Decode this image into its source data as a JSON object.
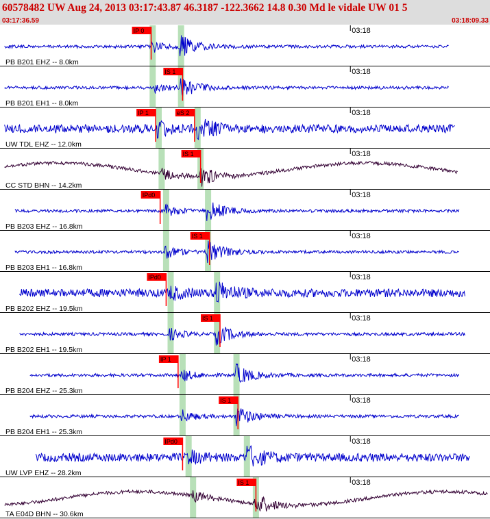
{
  "header": {
    "title": "60578482 UW Aug 24, 2013 03:17:43.87   46.3187 -122.3662 14.8 0.30 Md le vidale UW 01   5",
    "start_time": "03:17:36.59",
    "end_time": "03:18:09.33"
  },
  "colors": {
    "header_bg": "#dddddd",
    "header_text": "#cc0000",
    "trace_short_period": "#0000cc",
    "trace_broadband": "#330033",
    "pick_flag": "#ff0000",
    "theoretical_band": "#b8e0b8",
    "divider": "#000000"
  },
  "chart_data": {
    "type": "line",
    "title": "60578482 UW Aug 24, 2013 03:17:43.87   46.3187 -122.3662 14.8 0.30 Md le vidale UW 01   5",
    "x_unit": "seconds after 03:17:36.59",
    "xlim": [
      0,
      32.74
    ],
    "minute_mark": {
      "label": "03:18",
      "t": 23.41
    },
    "origin_time": "03:17:43.87",
    "grid": false,
    "traces": [
      {
        "label": "PB B201 EHZ -- 8.0km",
        "kind": "sp",
        "data_start": 0.3,
        "data_end": 30.0,
        "p_theory": 10.2,
        "s_theory": 12.1,
        "pick": {
          "label": "IP 0",
          "t": 10.1
        }
      },
      {
        "label": "PB B201 EH1 -- 8.0km",
        "kind": "sp",
        "data_start": 0.3,
        "data_end": 30.0,
        "p_theory": 10.2,
        "s_theory": 12.1,
        "pick": {
          "label": "IS 1",
          "t": 12.2
        }
      },
      {
        "label": "UW TDL EHZ -- 12.0km",
        "kind": "sp",
        "data_start": 0.3,
        "data_end": 30.4,
        "p_theory": 10.6,
        "s_theory": 13.2,
        "pick": {
          "label": "IP 1",
          "t": 10.4
        },
        "pick2": {
          "label": "eS 2",
          "t": 13.0
        }
      },
      {
        "label": "CC STD BHN -- 14.2km",
        "kind": "bb",
        "data_start": 0.3,
        "data_end": 30.6,
        "p_theory": 10.8,
        "s_theory": 13.4,
        "pick": {
          "label": "IS 1",
          "t": 13.4
        }
      },
      {
        "label": "PB B203 EHZ -- 16.8km",
        "kind": "sp",
        "data_start": 1.0,
        "data_end": 30.7,
        "p_theory": 11.1,
        "s_theory": 13.9,
        "pick": {
          "label": "IPd0",
          "t": 10.7
        }
      },
      {
        "label": "PB B203 EH1 -- 16.8km",
        "kind": "sp",
        "data_start": 1.0,
        "data_end": 30.7,
        "p_theory": 11.1,
        "s_theory": 13.9,
        "pick": {
          "label": "IS 1",
          "t": 14.0
        }
      },
      {
        "label": "PB B202 EHZ -- 19.5km",
        "kind": "sp",
        "data_start": 1.3,
        "data_end": 31.1,
        "p_theory": 11.4,
        "s_theory": 14.5,
        "pick": {
          "label": "IPd0",
          "t": 11.1
        }
      },
      {
        "label": "PB B202 EH1 -- 19.5km",
        "kind": "sp",
        "data_start": 1.3,
        "data_end": 31.1,
        "p_theory": 11.4,
        "s_theory": 14.5,
        "pick": {
          "label": "IS 1",
          "t": 14.7
        }
      },
      {
        "label": "PB B204 EHZ -- 25.3km",
        "kind": "sp",
        "data_start": 2.0,
        "data_end": 30.7,
        "p_theory": 12.2,
        "s_theory": 15.8,
        "pick": {
          "label": "IP 1",
          "t": 11.9
        }
      },
      {
        "label": "PB B204 EH1 -- 25.3km",
        "kind": "sp",
        "data_start": 2.0,
        "data_end": 30.7,
        "p_theory": 12.2,
        "s_theory": 15.8,
        "pick": {
          "label": "IS 1",
          "t": 15.9
        }
      },
      {
        "label": "UW LVP EHZ -- 28.2km",
        "kind": "sp",
        "data_start": 2.4,
        "data_end": 31.4,
        "p_theory": 12.6,
        "s_theory": 16.5,
        "pick": {
          "label": "IPd0",
          "t": 12.2
        }
      },
      {
        "label": "TA E04D BHN -- 30.6km",
        "kind": "bb",
        "data_start": 0.3,
        "data_end": 32.6,
        "p_theory": 12.9,
        "s_theory": 17.1,
        "pick": {
          "label": "IS 1",
          "t": 17.1
        }
      }
    ]
  }
}
